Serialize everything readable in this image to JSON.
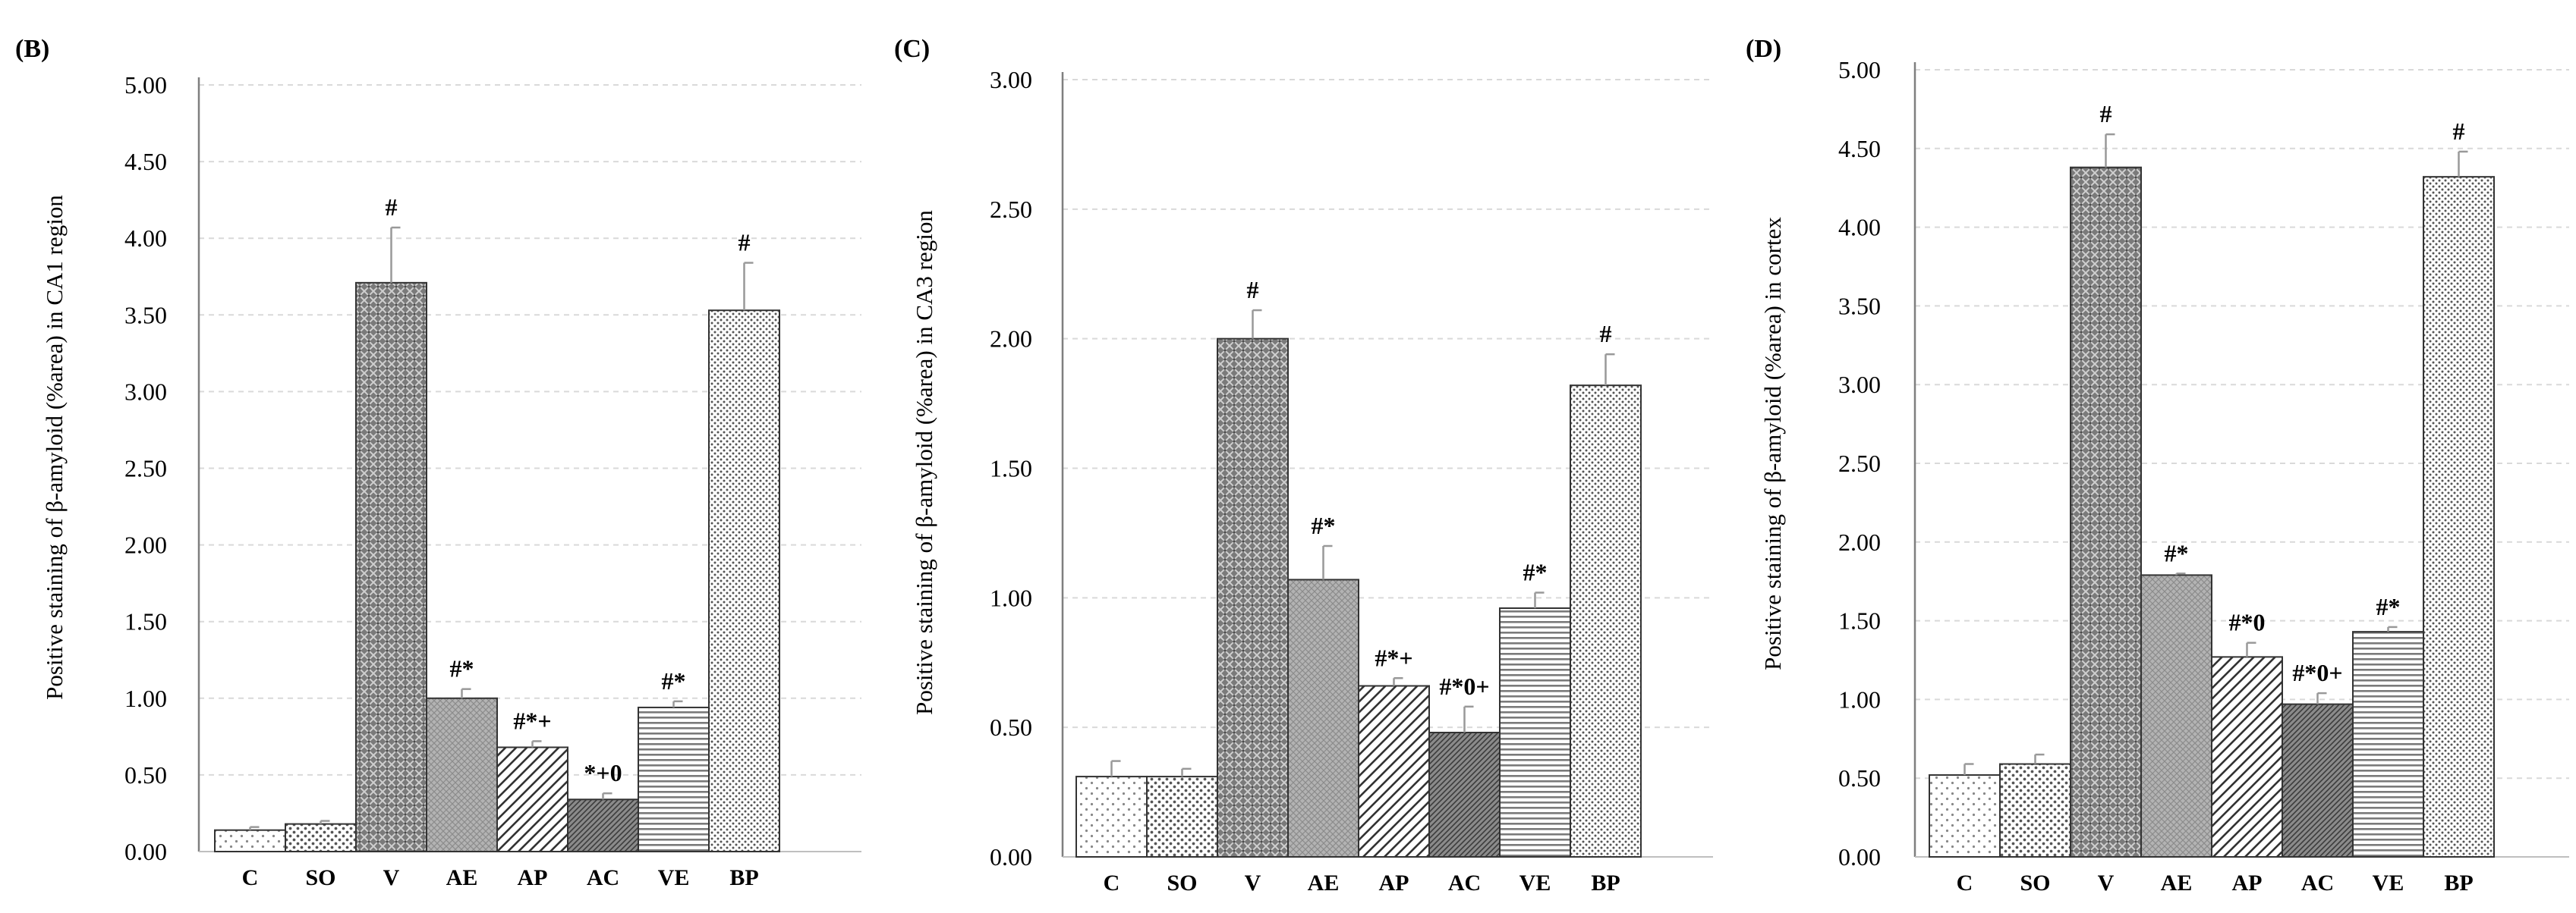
{
  "chart_data": [
    {
      "type": "bar",
      "panel_label": "(B)",
      "ylabel": "Positive staining of β-amyloid (%area) in CA1 region",
      "xlabel": "",
      "ylim": [
        0,
        5
      ],
      "ytick_step": 0.5,
      "ytick_labels": [
        "0.00",
        "0.50",
        "1.00",
        "1.50",
        "2.00",
        "2.50",
        "3.00",
        "3.50",
        "4.00",
        "4.50",
        "5.00"
      ],
      "grid": true,
      "categories": [
        "C",
        "SO",
        "V",
        "AE",
        "AP",
        "AC",
        "VE",
        "BP"
      ],
      "values": [
        0.14,
        0.18,
        3.71,
        1.0,
        0.68,
        0.34,
        0.94,
        3.53
      ],
      "errors": [
        0.02,
        0.02,
        0.36,
        0.06,
        0.04,
        0.04,
        0.04,
        0.31
      ],
      "annotations": [
        "",
        "",
        "#",
        "#*",
        "#*+",
        "*+0",
        "#*",
        "#"
      ]
    },
    {
      "type": "bar",
      "panel_label": "(C)",
      "ylabel": "Positive staining of β-amyloid (%area) in CA3 region",
      "xlabel": "",
      "ylim": [
        0,
        3
      ],
      "ytick_step": 0.5,
      "ytick_labels": [
        "0.00",
        "0.50",
        "1.00",
        "1.50",
        "2.00",
        "2.50",
        "3.00"
      ],
      "grid": true,
      "categories": [
        "C",
        "SO",
        "V",
        "AE",
        "AP",
        "AC",
        "VE",
        "BP"
      ],
      "values": [
        0.31,
        0.31,
        2.0,
        1.07,
        0.66,
        0.48,
        0.96,
        1.82
      ],
      "errors": [
        0.06,
        0.03,
        0.11,
        0.13,
        0.03,
        0.1,
        0.06,
        0.12
      ],
      "annotations": [
        "",
        "",
        "#",
        "#*",
        "#*+",
        "#*0+",
        "#*",
        "#"
      ]
    },
    {
      "type": "bar",
      "panel_label": "(D)",
      "ylabel": "Positive staining of β-amyloid (%area) in cortex",
      "xlabel": "",
      "ylim": [
        0,
        5
      ],
      "ytick_step": 0.5,
      "ytick_labels": [
        "0.00",
        "0.50",
        "1.00",
        "1.50",
        "2.00",
        "2.50",
        "3.00",
        "3.50",
        "4.00",
        "4.50",
        "5.00"
      ],
      "grid": true,
      "categories": [
        "C",
        "SO",
        "V",
        "AE",
        "AP",
        "AC",
        "VE",
        "BP"
      ],
      "values": [
        0.52,
        0.59,
        4.38,
        1.79,
        1.27,
        0.97,
        1.43,
        4.32
      ],
      "errors": [
        0.07,
        0.06,
        0.21,
        0.01,
        0.09,
        0.07,
        0.03,
        0.16
      ],
      "annotations": [
        "",
        "",
        "#",
        "#*",
        "#*0",
        "#*0+",
        "#*",
        "#"
      ]
    }
  ],
  "colors": {
    "axis": "#7f7f7f",
    "grid": "#d9d9d9",
    "bar_outline": "#333333",
    "dark_fill": "#808080",
    "medium_fill": "#a6a6a6",
    "dot_fill": "#666666",
    "error_bar": "#999999"
  }
}
